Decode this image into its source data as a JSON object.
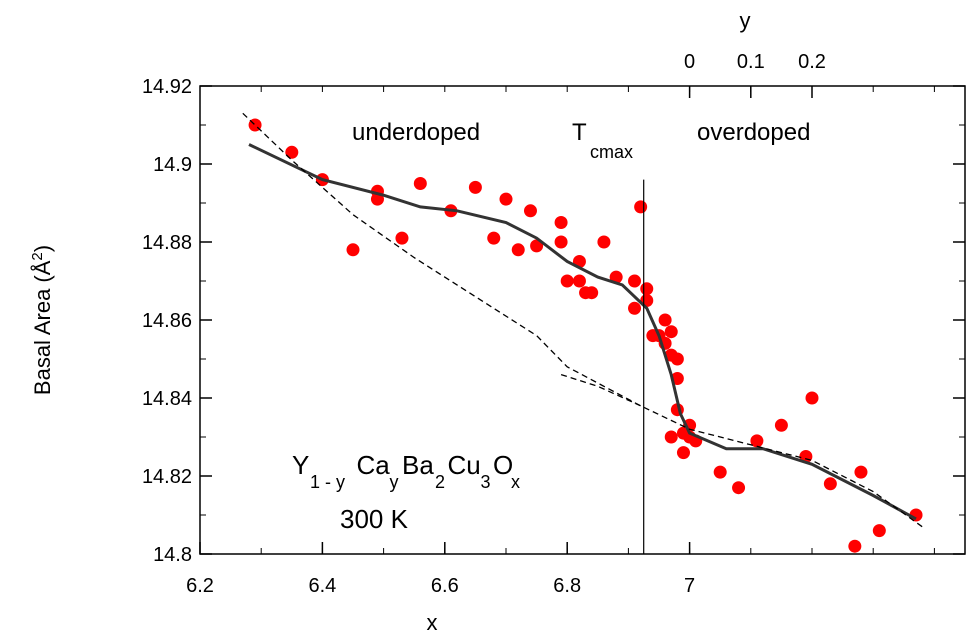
{
  "chart_data": {
    "type": "scatter",
    "xlabel": "x",
    "ylabel": "Basal Area (Å",
    "ylabel_sup": "2",
    "ylabel_close": ")",
    "top_axis_label": "y",
    "xlim": [
      6.2,
      7.45
    ],
    "ylim": [
      14.8,
      14.92
    ],
    "x_ticks": [
      6.2,
      6.4,
      6.6,
      6.8,
      7
    ],
    "x_tick_labels": [
      "6.2",
      "6.4",
      "6.6",
      "6.8",
      "7"
    ],
    "y_ticks": [
      14.8,
      14.82,
      14.84,
      14.86,
      14.88,
      14.9,
      14.92
    ],
    "y_tick_labels": [
      "14.8",
      "14.82",
      "14.84",
      "14.86",
      "14.88",
      "14.9",
      "14.92"
    ],
    "top_ticks_x": [
      7.0,
      7.1,
      7.2
    ],
    "top_tick_labels": [
      "0",
      "0.1",
      "0.2"
    ],
    "tcmax_x": 6.925,
    "tcmax_top_y": 14.896,
    "annotations": {
      "underdoped": "underdoped",
      "tcmax_T": "T",
      "tcmax_sub": "cmax",
      "overdoped": "overdoped",
      "temperature": "300  K"
    },
    "formula": [
      {
        "text": "Y",
        "sub": "1 - y"
      },
      {
        "text": "Ca",
        "sub": "y"
      },
      {
        "text": "Ba",
        "sub": "2"
      },
      {
        "text": "Cu",
        "sub": "3"
      },
      {
        "text": "O",
        "sub": "x"
      }
    ],
    "marker_color": "#ff0000",
    "line_color": "#333333",
    "series": [
      {
        "kind": "points",
        "points": [
          [
            6.29,
            14.91
          ],
          [
            6.35,
            14.903
          ],
          [
            6.4,
            14.896
          ],
          [
            6.45,
            14.878
          ],
          [
            6.49,
            14.893
          ],
          [
            6.49,
            14.891
          ],
          [
            6.53,
            14.881
          ],
          [
            6.56,
            14.895
          ],
          [
            6.61,
            14.888
          ],
          [
            6.65,
            14.894
          ],
          [
            6.68,
            14.881
          ],
          [
            6.7,
            14.891
          ],
          [
            6.72,
            14.878
          ],
          [
            6.74,
            14.888
          ],
          [
            6.75,
            14.879
          ],
          [
            6.79,
            14.885
          ],
          [
            6.79,
            14.88
          ],
          [
            6.8,
            14.87
          ],
          [
            6.82,
            14.875
          ],
          [
            6.82,
            14.87
          ],
          [
            6.83,
            14.867
          ],
          [
            6.84,
            14.867
          ],
          [
            6.86,
            14.88
          ],
          [
            6.88,
            14.871
          ],
          [
            6.91,
            14.87
          ],
          [
            6.91,
            14.863
          ],
          [
            6.92,
            14.889
          ],
          [
            6.93,
            14.868
          ],
          [
            6.93,
            14.865
          ],
          [
            6.94,
            14.856
          ],
          [
            6.95,
            14.856
          ],
          [
            6.96,
            14.86
          ],
          [
            6.96,
            14.854
          ],
          [
            6.97,
            14.857
          ],
          [
            6.97,
            14.851
          ],
          [
            6.98,
            14.85
          ],
          [
            6.98,
            14.845
          ],
          [
            6.98,
            14.837
          ],
          [
            6.97,
            14.83
          ],
          [
            6.99,
            14.826
          ],
          [
            6.99,
            14.831
          ],
          [
            7.0,
            14.83
          ],
          [
            7.0,
            14.833
          ],
          [
            7.01,
            14.829
          ],
          [
            7.05,
            14.821
          ],
          [
            7.08,
            14.817
          ],
          [
            7.11,
            14.829
          ],
          [
            7.15,
            14.833
          ],
          [
            7.19,
            14.825
          ],
          [
            7.2,
            14.84
          ],
          [
            7.23,
            14.818
          ],
          [
            7.27,
            14.802
          ],
          [
            7.28,
            14.821
          ],
          [
            7.31,
            14.806
          ],
          [
            7.37,
            14.81
          ]
        ]
      },
      {
        "kind": "solid-line",
        "points": [
          [
            6.28,
            14.905
          ],
          [
            6.4,
            14.896
          ],
          [
            6.5,
            14.892
          ],
          [
            6.56,
            14.889
          ],
          [
            6.62,
            14.888
          ],
          [
            6.7,
            14.885
          ],
          [
            6.75,
            14.881
          ],
          [
            6.8,
            14.875
          ],
          [
            6.85,
            14.871
          ],
          [
            6.89,
            14.869
          ],
          [
            6.91,
            14.866
          ],
          [
            6.93,
            14.863
          ],
          [
            6.95,
            14.856
          ],
          [
            6.97,
            14.846
          ],
          [
            6.985,
            14.836
          ],
          [
            7.0,
            14.831
          ],
          [
            7.06,
            14.827
          ],
          [
            7.12,
            14.827
          ],
          [
            7.2,
            14.823
          ],
          [
            7.3,
            14.815
          ],
          [
            7.37,
            14.809
          ]
        ]
      },
      {
        "kind": "dashed-line",
        "points": [
          [
            6.27,
            14.913
          ],
          [
            6.35,
            14.901
          ],
          [
            6.45,
            14.887
          ],
          [
            6.55,
            14.876
          ],
          [
            6.65,
            14.866
          ],
          [
            6.75,
            14.856
          ],
          [
            6.8,
            14.848
          ],
          [
            6.86,
            14.843
          ],
          [
            6.92,
            14.838
          ],
          [
            7.0,
            14.832
          ],
          [
            7.1,
            14.828
          ],
          [
            7.2,
            14.824
          ],
          [
            7.3,
            14.816
          ],
          [
            7.38,
            14.807
          ]
        ]
      },
      {
        "kind": "dashed-line",
        "points": [
          [
            6.79,
            14.846
          ],
          [
            6.85,
            14.843
          ],
          [
            6.92,
            14.838
          ]
        ]
      }
    ]
  }
}
